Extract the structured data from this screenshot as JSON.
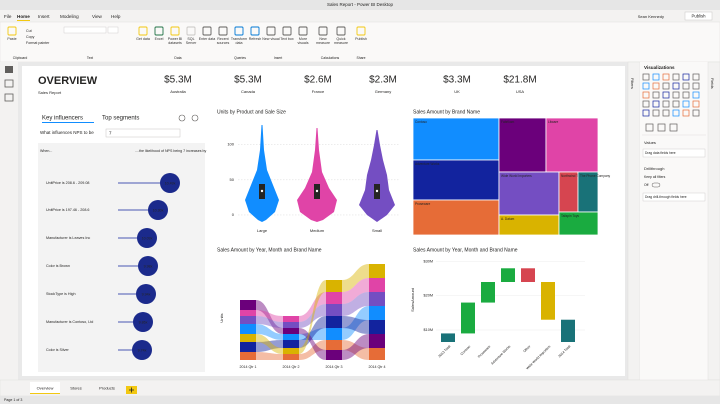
{
  "window": {
    "title": "Sales Report - Power BI Desktop",
    "user": "Sean Kennedy"
  },
  "ribbon": {
    "tabs": [
      "File",
      "Home",
      "Insert",
      "Modeling",
      "View",
      "Help"
    ],
    "publish": "Publish",
    "clipboard": [
      "Cut",
      "Copy",
      "Format painter"
    ],
    "buttons": [
      "Paste",
      "Get data",
      "Excel",
      "Power BI datasets",
      "SQL Server",
      "Enter data",
      "Recent sources",
      "Transform data",
      "Refresh",
      "New visual",
      "Text box",
      "More visuals",
      "New measure",
      "Quick measure",
      "Publish"
    ],
    "groups": [
      "Clipboard",
      "Text",
      "Data",
      "Queries",
      "Insert",
      "Calculations",
      "Share"
    ]
  },
  "report": {
    "heading": "OVERVIEW",
    "subheading": "Sales Report",
    "kpis": [
      {
        "value": "$5.3M",
        "label": "Australia"
      },
      {
        "value": "$5.3M",
        "label": "Canada"
      },
      {
        "value": "$2.6M",
        "label": "France"
      },
      {
        "value": "$2.3M",
        "label": "Germany"
      },
      {
        "value": "$3.3M",
        "label": "UK"
      },
      {
        "value": "$21.8M",
        "label": "USA"
      }
    ]
  },
  "key_influencers": {
    "tabs": [
      "Key influencers",
      "Top segments"
    ],
    "question": "What influences NPS to be",
    "answer": "7",
    "col_when": "When...",
    "col_likelihood": "....the likelihood of NPS being 7 increases by",
    "rows": [
      {
        "label": "UnitPrice is 208.6 - 209.08",
        "value": "10.49x"
      },
      {
        "label": "UnitPrice is 197.46 - 208.6",
        "value": "10.30x"
      },
      {
        "label": "Manufacturer is Leaves Inc",
        "value": "10.09x"
      },
      {
        "label": "Color is Brown",
        "value": "9.98x"
      },
      {
        "label": "StockType is High",
        "value": "9.94x"
      },
      {
        "label": "Manufacturer is Contoso, Ltd",
        "value": "9.86x"
      },
      {
        "label": "Color is Silver",
        "value": "9.74x"
      }
    ]
  },
  "chart_data": [
    {
      "type": "violin",
      "title": "Units by Product and Sale Size",
      "categories": [
        "Large",
        "Medium",
        "Small"
      ],
      "colors": [
        "#118dff",
        "#e044a7",
        "#744ec2"
      ],
      "ylim": [
        -10,
        128
      ],
      "yticks": [
        0,
        50,
        100
      ],
      "grid": true
    },
    {
      "type": "treemap",
      "title": "Sales Amount by Brand Name",
      "categories": [
        "Contoso",
        "Adventure Works",
        "Proseware",
        "Fabrikam",
        "Litware",
        "Wide World Importers",
        "A. Datum",
        "Northwind Traders",
        "The Phone Company",
        "Tailspin Toys"
      ],
      "colors": [
        "#118dff",
        "#12239e",
        "#e66c37",
        "#6b007b",
        "#e044a7",
        "#744ec2",
        "#d9b300",
        "#d64550",
        "#197278",
        "#1aab40"
      ]
    },
    {
      "type": "ribbon",
      "title": "Sales Amount by Year, Month and Brand Name",
      "categories": [
        "2014 Qtr 1",
        "2014 Qtr 2",
        "2014 Qtr 3",
        "2014 Qtr 4"
      ],
      "y_label": "Units"
    },
    {
      "type": "waterfall",
      "title": "Sales Amount by Year, Month and Brand Name",
      "categories": [
        "2013 Total",
        "Contoso",
        "Proseware",
        "Adventure Works",
        "Other",
        "Wide World Importers",
        "2014 Total"
      ],
      "values": [
        9,
        9,
        6,
        4,
        -4,
        -11,
        13
      ],
      "colors": [
        "#197278",
        "#1aab40",
        "#1aab40",
        "#1aab40",
        "#d64550",
        "#d9b300",
        "#197278"
      ],
      "y_label": "SalesAmount",
      "ylim": [
        6.5,
        31
      ],
      "yticks": [
        {
          "value": 10,
          "label": "$10M"
        },
        {
          "value": 20,
          "label": "$20M"
        },
        {
          "value": 30,
          "label": "$30M"
        }
      ]
    }
  ],
  "viz_pane": {
    "title": "Visualizations",
    "values": "Values",
    "values_drop": "Drag data fields here",
    "drillthrough": "Drillthrough",
    "keep_filters": "Keep all filters",
    "toggle": "Off",
    "drill_drop": "Drag drill-through fields here"
  },
  "side_strips": {
    "filters": "Filters",
    "fields": "Fields"
  },
  "pages": {
    "tabs": [
      "Overview",
      "Stores",
      "Products"
    ],
    "status": "Page 1 of 3"
  }
}
